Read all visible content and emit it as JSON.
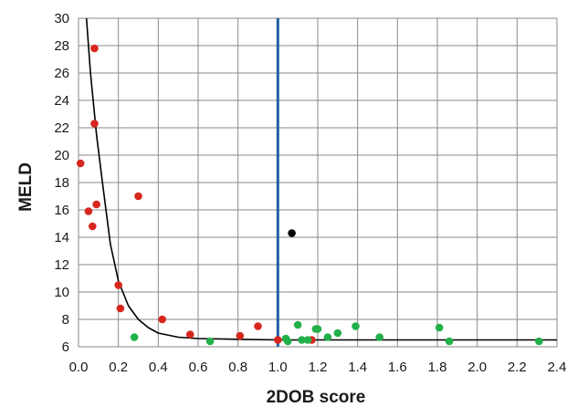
{
  "chart_data": {
    "type": "scatter",
    "title": "",
    "xlabel": "2DOB score",
    "ylabel": "MELD",
    "xlim": [
      0.0,
      2.4
    ],
    "ylim": [
      6,
      30
    ],
    "x_ticks": [
      "0.0",
      "0.2",
      "0.4",
      "0.6",
      "0.8",
      "1.0",
      "1.2",
      "1.4",
      "1.6",
      "1.8",
      "2.0",
      "2.2",
      "2.4"
    ],
    "y_ticks": [
      "6",
      "8",
      "10",
      "12",
      "14",
      "16",
      "18",
      "20",
      "22",
      "24",
      "26",
      "28",
      "30"
    ],
    "grid": true,
    "legend": "none",
    "reference_line": {
      "axis": "x",
      "value": 1.0,
      "color": "#1f5fa8"
    },
    "fit_curve": {
      "type": "line",
      "color": "#000000",
      "points": [
        [
          0.04,
          30
        ],
        [
          0.06,
          26
        ],
        [
          0.09,
          21.5
        ],
        [
          0.12,
          18
        ],
        [
          0.16,
          13.5
        ],
        [
          0.2,
          10.8
        ],
        [
          0.25,
          9.0
        ],
        [
          0.3,
          8.0
        ],
        [
          0.35,
          7.4
        ],
        [
          0.4,
          7.0
        ],
        [
          0.5,
          6.7
        ],
        [
          0.6,
          6.6
        ],
        [
          0.8,
          6.55
        ],
        [
          1.0,
          6.5
        ],
        [
          2.4,
          6.5
        ]
      ]
    },
    "series": [
      {
        "color": "#d7261e",
        "points": [
          [
            0.08,
            27.8
          ],
          [
            0.08,
            22.3
          ],
          [
            0.01,
            19.4
          ],
          [
            0.3,
            17.0
          ],
          [
            0.09,
            16.4
          ],
          [
            0.05,
            15.9
          ],
          [
            0.07,
            14.8
          ],
          [
            0.2,
            10.5
          ],
          [
            0.21,
            8.8
          ],
          [
            0.42,
            8.0
          ],
          [
            0.9,
            7.5
          ],
          [
            0.56,
            6.9
          ],
          [
            0.81,
            6.8
          ],
          [
            1.0,
            6.5
          ],
          [
            1.17,
            6.5
          ]
        ]
      },
      {
        "color": "#22b04a",
        "points": [
          [
            0.28,
            6.7
          ],
          [
            0.66,
            6.4
          ],
          [
            1.04,
            6.6
          ],
          [
            1.05,
            6.4
          ],
          [
            1.1,
            7.6
          ],
          [
            1.12,
            6.5
          ],
          [
            1.15,
            6.5
          ],
          [
            1.19,
            7.3
          ],
          [
            1.2,
            7.3
          ],
          [
            1.25,
            6.7
          ],
          [
            1.3,
            7.0
          ],
          [
            1.39,
            7.5
          ],
          [
            1.51,
            6.7
          ],
          [
            1.81,
            7.4
          ],
          [
            1.86,
            6.4
          ],
          [
            2.31,
            6.4
          ]
        ]
      },
      {
        "color": "#000000",
        "points": [
          [
            1.07,
            14.3
          ]
        ]
      }
    ]
  }
}
